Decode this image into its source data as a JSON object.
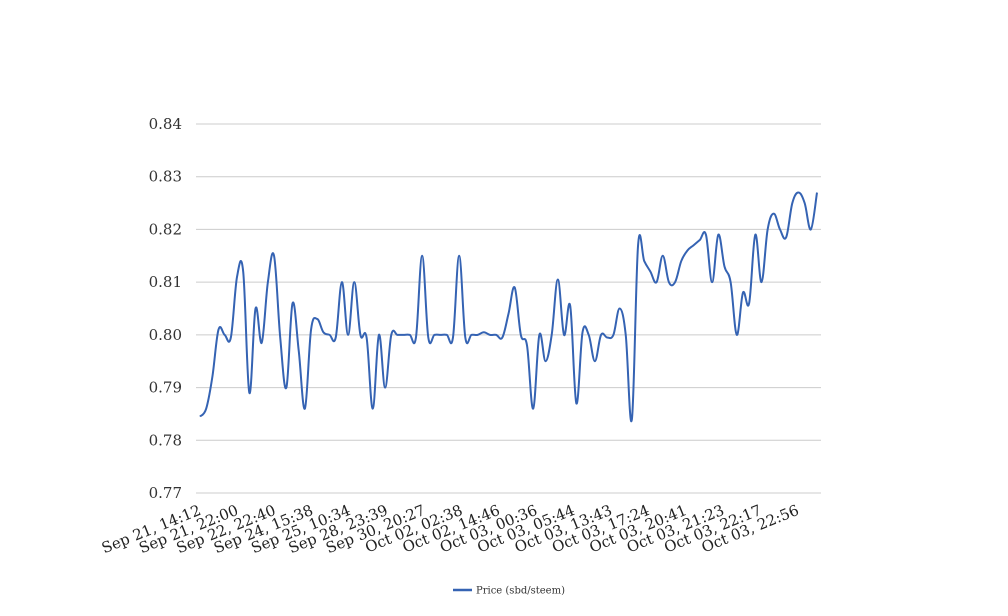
{
  "chart_data": {
    "type": "line",
    "title": "",
    "xlabel": "",
    "ylabel": "",
    "ylim": [
      0.77,
      0.84
    ],
    "y_ticks": [
      "0.77",
      "0.78",
      "0.79",
      "0.80",
      "0.81",
      "0.82",
      "0.83",
      "0.84"
    ],
    "x_tick_labels": [
      "Sep 21, 14:12",
      "Sep 21, 22:00",
      "Sep 22, 22:40",
      "Sep 24, 15:38",
      "Sep 25, 10:34",
      "Sep 28, 23:39",
      "Sep 30, 20:27",
      "Oct 02, 02:38",
      "Oct 02, 14:46",
      "Oct 03, 00:36",
      "Oct 03, 05:44",
      "Oct 03, 13:43",
      "Oct 03, 17:24",
      "Oct 03, 20:41",
      "Oct 03, 21:23",
      "Oct 03, 22:17",
      "Oct 03, 22:56"
    ],
    "grid": true,
    "legend_position": "bottom-center",
    "series": [
      {
        "name": "Price (sbd/steem)",
        "color": "#3563b3",
        "values": [
          0.7845,
          0.786,
          0.792,
          0.801,
          0.8,
          0.7995,
          0.811,
          0.812,
          0.789,
          0.805,
          0.7985,
          0.81,
          0.815,
          0.7995,
          0.79,
          0.806,
          0.797,
          0.786,
          0.801,
          0.803,
          0.8005,
          0.8,
          0.7995,
          0.81,
          0.8,
          0.81,
          0.8,
          0.7995,
          0.786,
          0.8,
          0.79,
          0.8,
          0.8,
          0.8,
          0.8,
          0.7995,
          0.815,
          0.7995,
          0.8,
          0.8,
          0.8,
          0.7995,
          0.815,
          0.7995,
          0.8,
          0.8,
          0.8005,
          0.8,
          0.8,
          0.7995,
          0.804,
          0.809,
          0.8,
          0.798,
          0.786,
          0.8,
          0.795,
          0.8,
          0.8105,
          0.8,
          0.8055,
          0.787,
          0.8005,
          0.8,
          0.795,
          0.8,
          0.7995,
          0.8,
          0.805,
          0.8,
          0.784,
          0.817,
          0.814,
          0.812,
          0.81,
          0.815,
          0.81,
          0.81,
          0.814,
          0.816,
          0.817,
          0.818,
          0.819,
          0.81,
          0.819,
          0.813,
          0.81,
          0.8,
          0.808,
          0.806,
          0.819,
          0.81,
          0.82,
          0.823,
          0.82,
          0.8185,
          0.825,
          0.827,
          0.825,
          0.82,
          0.827
        ]
      }
    ]
  }
}
